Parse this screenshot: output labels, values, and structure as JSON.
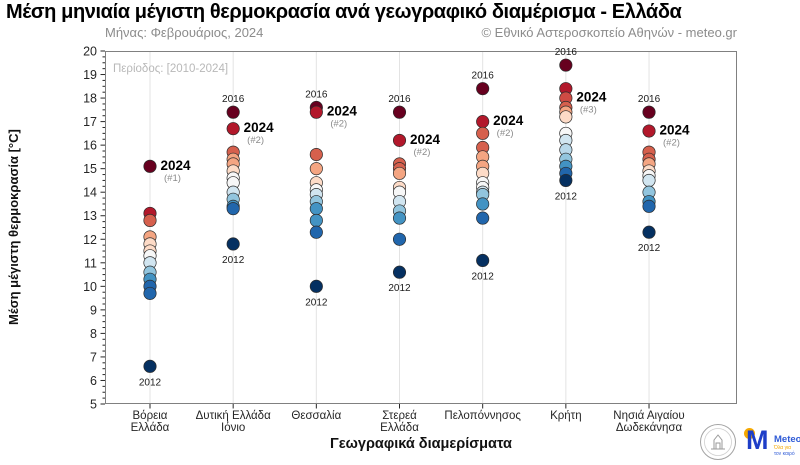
{
  "header": {
    "title": "Μέση μηνιαία μέγιστη θερμοκρασία ανά γεωγραφικό διαμέρισμα - Ελλάδα",
    "subtitle": "Μήνας: Φεβρουάριος, 2024",
    "credit": "© Εθνικό Αστεροσκοπείο Αθηνών - meteo.gr"
  },
  "footer": {
    "meteo_name": "Meteo",
    "meteo_tagline_line1": "Όλα για",
    "meteo_tagline_line2": "τον καιρό",
    "observatory_seal": "National Observatory of Athens emblem"
  },
  "chart_data": {
    "type": "scatter",
    "title": "Μέση μηνιαία μέγιστη θερμοκρασία ανά γεωγραφικό διαμέρισμα - Ελλάδα",
    "period_note": "Περίοδος: [2010-2024]",
    "xlabel": "Γεωγραφικά διαμερίσματα",
    "ylabel": "Μέση μέγιστη θερμοκρασία [°C]",
    "ylim": [
      5,
      20
    ],
    "ytick_step": 1,
    "ytick_minor_step": 0.25,
    "grid": "vertical category gridlines, light gray",
    "legend_position": "none",
    "point_edge_color": "#2b2b2b",
    "categories": [
      "Βόρεια Ελλάδα",
      "Δυτική Ελλάδα Ιόνιο",
      "Θεσσαλία",
      "Στερεά Ελλάδα",
      "Πελοπόννησος",
      "Κρήτη",
      "Νησιά Αιγαίου Δωδεκάνησα"
    ],
    "category_label_lines": [
      [
        "Βόρεια",
        "Ελλάδα"
      ],
      [
        "Δυτική Ελλάδα",
        "Ιόνιο"
      ],
      [
        "Θεσσαλία"
      ],
      [
        "Στερεά",
        "Ελλάδα"
      ],
      [
        "Πελοπόννησος"
      ],
      [
        "Κρήτη"
      ],
      [
        "Νησιά Αιγαίου",
        "Δωδεκάνησα"
      ]
    ],
    "series": [
      {
        "region": "Βόρεια Ελλάδα",
        "points": [
          {
            "t": 15.1,
            "c": "#67001f",
            "year": "2024",
            "labelPos": "right",
            "rank": "(#1)"
          },
          {
            "t": 13.1,
            "c": "#b2182b"
          },
          {
            "t": 12.8,
            "c": "#d6604d"
          },
          {
            "t": 12.1,
            "c": "#f4a582"
          },
          {
            "t": 11.8,
            "c": "#fddbc7"
          },
          {
            "t": 11.5,
            "c": "#fddbc7"
          },
          {
            "t": 11.3,
            "c": "#f7f7f7"
          },
          {
            "t": 11.0,
            "c": "#d1e5f0"
          },
          {
            "t": 10.6,
            "c": "#92c5de"
          },
          {
            "t": 10.3,
            "c": "#4393c3"
          },
          {
            "t": 10.0,
            "c": "#2166ac"
          },
          {
            "t": 9.7,
            "c": "#2166ac"
          },
          {
            "t": 6.6,
            "c": "#053061",
            "year": "2012",
            "labelPos": "below"
          }
        ]
      },
      {
        "region": "Δυτική Ελλάδα Ιόνιο",
        "points": [
          {
            "t": 17.4,
            "c": "#67001f",
            "year": "2016",
            "labelPos": "above"
          },
          {
            "t": 16.7,
            "c": "#b2182b",
            "year": "2024",
            "labelPos": "right",
            "rank": "(#2)"
          },
          {
            "t": 15.7,
            "c": "#d6604d"
          },
          {
            "t": 15.4,
            "c": "#f4a582"
          },
          {
            "t": 15.2,
            "c": "#f4a582"
          },
          {
            "t": 14.9,
            "c": "#fddbc7"
          },
          {
            "t": 14.6,
            "c": "#f7f7f7"
          },
          {
            "t": 14.4,
            "c": "#f7f7f7"
          },
          {
            "t": 14.0,
            "c": "#d1e5f0"
          },
          {
            "t": 13.7,
            "c": "#92c5de"
          },
          {
            "t": 13.4,
            "c": "#4393c3"
          },
          {
            "t": 13.3,
            "c": "#2166ac"
          },
          {
            "t": 11.8,
            "c": "#053061",
            "year": "2012",
            "labelPos": "below"
          }
        ]
      },
      {
        "region": "Θεσσαλία",
        "points": [
          {
            "t": 17.6,
            "c": "#67001f",
            "year": "2016",
            "labelPos": "above"
          },
          {
            "t": 17.4,
            "c": "#b2182b",
            "year": "2024",
            "labelPos": "right",
            "rank": "(#2)"
          },
          {
            "t": 15.6,
            "c": "#d6604d"
          },
          {
            "t": 15.0,
            "c": "#f4a582"
          },
          {
            "t": 14.4,
            "c": "#fddbc7"
          },
          {
            "t": 14.1,
            "c": "#f7f7f7"
          },
          {
            "t": 13.9,
            "c": "#d1e5f0"
          },
          {
            "t": 13.6,
            "c": "#92c5de"
          },
          {
            "t": 13.3,
            "c": "#4393c3"
          },
          {
            "t": 12.8,
            "c": "#4393c3"
          },
          {
            "t": 12.3,
            "c": "#2166ac"
          },
          {
            "t": 10.0,
            "c": "#053061",
            "year": "2012",
            "labelPos": "below"
          }
        ]
      },
      {
        "region": "Στερεά Ελλάδα",
        "points": [
          {
            "t": 17.4,
            "c": "#67001f",
            "year": "2016",
            "labelPos": "above"
          },
          {
            "t": 16.2,
            "c": "#b2182b",
            "year": "2024",
            "labelPos": "right",
            "rank": "(#2)"
          },
          {
            "t": 15.2,
            "c": "#d6604d"
          },
          {
            "t": 15.0,
            "c": "#d6604d"
          },
          {
            "t": 14.8,
            "c": "#f4a582"
          },
          {
            "t": 14.2,
            "c": "#fddbc7"
          },
          {
            "t": 14.0,
            "c": "#f7f7f7"
          },
          {
            "t": 13.6,
            "c": "#d1e5f0"
          },
          {
            "t": 13.2,
            "c": "#92c5de"
          },
          {
            "t": 12.9,
            "c": "#4393c3"
          },
          {
            "t": 12.0,
            "c": "#2166ac"
          },
          {
            "t": 10.6,
            "c": "#053061",
            "year": "2012",
            "labelPos": "below"
          }
        ]
      },
      {
        "region": "Πελοπόννησος",
        "points": [
          {
            "t": 18.4,
            "c": "#67001f",
            "year": "2016",
            "labelPos": "above"
          },
          {
            "t": 17.0,
            "c": "#b2182b",
            "year": "2024",
            "labelPos": "right",
            "rank": "(#2)"
          },
          {
            "t": 16.5,
            "c": "#d6604d"
          },
          {
            "t": 15.9,
            "c": "#d6604d"
          },
          {
            "t": 15.5,
            "c": "#f4a582"
          },
          {
            "t": 15.1,
            "c": "#f4a582"
          },
          {
            "t": 14.8,
            "c": "#fddbc7"
          },
          {
            "t": 14.4,
            "c": "#f7f7f7"
          },
          {
            "t": 14.2,
            "c": "#f7f7f7"
          },
          {
            "t": 14.0,
            "c": "#d1e5f0"
          },
          {
            "t": 13.9,
            "c": "#92c5de"
          },
          {
            "t": 13.5,
            "c": "#4393c3"
          },
          {
            "t": 12.9,
            "c": "#2166ac"
          },
          {
            "t": 11.1,
            "c": "#053061",
            "year": "2012",
            "labelPos": "below"
          }
        ]
      },
      {
        "region": "Κρήτη",
        "points": [
          {
            "t": 19.4,
            "c": "#67001f",
            "year": "2016",
            "labelPos": "above"
          },
          {
            "t": 18.4,
            "c": "#b2182b"
          },
          {
            "t": 18.0,
            "c": "#cf4b44",
            "year": "2024",
            "labelPos": "right",
            "rank": "(#3)"
          },
          {
            "t": 17.6,
            "c": "#d6604d"
          },
          {
            "t": 17.4,
            "c": "#f4a582"
          },
          {
            "t": 17.2,
            "c": "#fddbc7"
          },
          {
            "t": 16.5,
            "c": "#f7f7f7"
          },
          {
            "t": 16.2,
            "c": "#d1e5f0"
          },
          {
            "t": 15.8,
            "c": "#b8d8ea"
          },
          {
            "t": 15.4,
            "c": "#92c5de"
          },
          {
            "t": 15.1,
            "c": "#4393c3"
          },
          {
            "t": 14.8,
            "c": "#2166ac"
          },
          {
            "t": 14.5,
            "c": "#053061",
            "year": "2012",
            "labelPos": "below"
          }
        ]
      },
      {
        "region": "Νησιά Αιγαίου Δωδεκάνησα",
        "points": [
          {
            "t": 17.4,
            "c": "#67001f",
            "year": "2016",
            "labelPos": "above"
          },
          {
            "t": 16.6,
            "c": "#b2182b",
            "year": "2024",
            "labelPos": "right",
            "rank": "(#2)"
          },
          {
            "t": 15.7,
            "c": "#d6604d"
          },
          {
            "t": 15.4,
            "c": "#d6604d"
          },
          {
            "t": 15.2,
            "c": "#f4a582"
          },
          {
            "t": 14.9,
            "c": "#fddbc7"
          },
          {
            "t": 14.7,
            "c": "#f7f7f7"
          },
          {
            "t": 14.5,
            "c": "#d1e5f0"
          },
          {
            "t": 14.0,
            "c": "#92c5de"
          },
          {
            "t": 13.6,
            "c": "#4393c3"
          },
          {
            "t": 13.4,
            "c": "#2166ac"
          },
          {
            "t": 12.3,
            "c": "#053061",
            "year": "2012",
            "labelPos": "below"
          }
        ]
      }
    ]
  }
}
